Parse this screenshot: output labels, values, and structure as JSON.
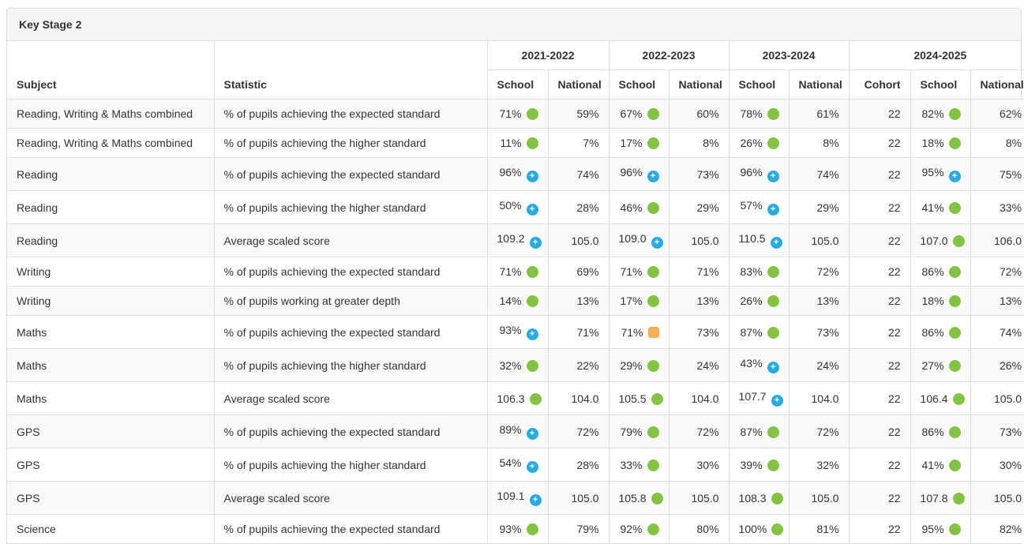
{
  "panel": {
    "title": "Key Stage 2"
  },
  "table": {
    "subject_header": "Subject",
    "statistic_header": "Statistic",
    "year_groups": [
      {
        "label": "2021-2022",
        "columns": [
          "School",
          "National"
        ]
      },
      {
        "label": "2022-2023",
        "columns": [
          "School",
          "National"
        ]
      },
      {
        "label": "2023-2024",
        "columns": [
          "School",
          "National"
        ]
      },
      {
        "label": "2024-2025",
        "columns": [
          "Cohort",
          "School",
          "National"
        ]
      }
    ],
    "icons": {
      "g": {
        "name": "green-circle-icon",
        "color": "#82c341",
        "shape": "circle",
        "glyph": ""
      },
      "b": {
        "name": "blue-plus-icon",
        "color": "#29abe2",
        "shape": "circle",
        "glyph": "+"
      },
      "o": {
        "name": "orange-square-icon",
        "color": "#f9ad5b",
        "shape": "square",
        "glyph": ""
      }
    },
    "rows": [
      {
        "subject": "Reading, Writing & Maths combined",
        "statistic": "% of pupils achieving the expected standard",
        "cells": [
          {
            "v": "71%",
            "i": "g"
          },
          {
            "v": "59%"
          },
          {
            "v": "67%",
            "i": "g"
          },
          {
            "v": "60%"
          },
          {
            "v": "78%",
            "i": "g"
          },
          {
            "v": "61%"
          },
          {
            "v": "22"
          },
          {
            "v": "82%",
            "i": "g"
          },
          {
            "v": "62%"
          }
        ]
      },
      {
        "subject": "Reading, Writing & Maths combined",
        "statistic": "% of pupils achieving the higher standard",
        "cells": [
          {
            "v": "11%",
            "i": "g"
          },
          {
            "v": "7%"
          },
          {
            "v": "17%",
            "i": "g"
          },
          {
            "v": "8%"
          },
          {
            "v": "26%",
            "i": "g"
          },
          {
            "v": "8%"
          },
          {
            "v": "22"
          },
          {
            "v": "18%",
            "i": "g"
          },
          {
            "v": "8%"
          }
        ]
      },
      {
        "subject": "Reading",
        "statistic": "% of pupils achieving the expected standard",
        "cells": [
          {
            "v": "96%",
            "i": "b"
          },
          {
            "v": "74%"
          },
          {
            "v": "96%",
            "i": "b"
          },
          {
            "v": "73%"
          },
          {
            "v": "96%",
            "i": "b"
          },
          {
            "v": "74%"
          },
          {
            "v": "22"
          },
          {
            "v": "95%",
            "i": "b"
          },
          {
            "v": "75%"
          }
        ]
      },
      {
        "subject": "Reading",
        "statistic": "% of pupils achieving the higher standard",
        "cells": [
          {
            "v": "50%",
            "i": "b"
          },
          {
            "v": "28%"
          },
          {
            "v": "46%",
            "i": "g"
          },
          {
            "v": "29%"
          },
          {
            "v": "57%",
            "i": "b"
          },
          {
            "v": "29%"
          },
          {
            "v": "22"
          },
          {
            "v": "41%",
            "i": "g"
          },
          {
            "v": "33%"
          }
        ]
      },
      {
        "subject": "Reading",
        "statistic": "Average scaled score",
        "cells": [
          {
            "v": "109.2",
            "i": "b"
          },
          {
            "v": "105.0"
          },
          {
            "v": "109.0",
            "i": "b"
          },
          {
            "v": "105.0"
          },
          {
            "v": "110.5",
            "i": "b"
          },
          {
            "v": "105.0"
          },
          {
            "v": "22"
          },
          {
            "v": "107.0",
            "i": "g"
          },
          {
            "v": "106.0"
          }
        ]
      },
      {
        "subject": "Writing",
        "statistic": "% of pupils achieving the expected standard",
        "cells": [
          {
            "v": "71%",
            "i": "g"
          },
          {
            "v": "69%"
          },
          {
            "v": "71%",
            "i": "g"
          },
          {
            "v": "71%"
          },
          {
            "v": "83%",
            "i": "g"
          },
          {
            "v": "72%"
          },
          {
            "v": "22"
          },
          {
            "v": "86%",
            "i": "g"
          },
          {
            "v": "72%"
          }
        ]
      },
      {
        "subject": "Writing",
        "statistic": "% of pupils working at greater depth",
        "cells": [
          {
            "v": "14%",
            "i": "g"
          },
          {
            "v": "13%"
          },
          {
            "v": "17%",
            "i": "g"
          },
          {
            "v": "13%"
          },
          {
            "v": "26%",
            "i": "g"
          },
          {
            "v": "13%"
          },
          {
            "v": "22"
          },
          {
            "v": "18%",
            "i": "g"
          },
          {
            "v": "13%"
          }
        ]
      },
      {
        "subject": "Maths",
        "statistic": "% of pupils achieving the expected standard",
        "cells": [
          {
            "v": "93%",
            "i": "b"
          },
          {
            "v": "71%"
          },
          {
            "v": "71%",
            "i": "o"
          },
          {
            "v": "73%"
          },
          {
            "v": "87%",
            "i": "g"
          },
          {
            "v": "73%"
          },
          {
            "v": "22"
          },
          {
            "v": "86%",
            "i": "g"
          },
          {
            "v": "74%"
          }
        ]
      },
      {
        "subject": "Maths",
        "statistic": "% of pupils achieving the higher standard",
        "cells": [
          {
            "v": "32%",
            "i": "g"
          },
          {
            "v": "22%"
          },
          {
            "v": "29%",
            "i": "g"
          },
          {
            "v": "24%"
          },
          {
            "v": "43%",
            "i": "b"
          },
          {
            "v": "24%"
          },
          {
            "v": "22"
          },
          {
            "v": "27%",
            "i": "g"
          },
          {
            "v": "26%"
          }
        ]
      },
      {
        "subject": "Maths",
        "statistic": "Average scaled score",
        "cells": [
          {
            "v": "106.3",
            "i": "g"
          },
          {
            "v": "104.0"
          },
          {
            "v": "105.5",
            "i": "g"
          },
          {
            "v": "104.0"
          },
          {
            "v": "107.7",
            "i": "b"
          },
          {
            "v": "104.0"
          },
          {
            "v": "22"
          },
          {
            "v": "106.4",
            "i": "g"
          },
          {
            "v": "105.0"
          }
        ]
      },
      {
        "subject": "GPS",
        "statistic": "% of pupils achieving the expected standard",
        "cells": [
          {
            "v": "89%",
            "i": "b"
          },
          {
            "v": "72%"
          },
          {
            "v": "79%",
            "i": "g"
          },
          {
            "v": "72%"
          },
          {
            "v": "87%",
            "i": "g"
          },
          {
            "v": "72%"
          },
          {
            "v": "22"
          },
          {
            "v": "86%",
            "i": "g"
          },
          {
            "v": "73%"
          }
        ]
      },
      {
        "subject": "GPS",
        "statistic": "% of pupils achieving the higher standard",
        "cells": [
          {
            "v": "54%",
            "i": "b"
          },
          {
            "v": "28%"
          },
          {
            "v": "33%",
            "i": "g"
          },
          {
            "v": "30%"
          },
          {
            "v": "39%",
            "i": "g"
          },
          {
            "v": "32%"
          },
          {
            "v": "22"
          },
          {
            "v": "41%",
            "i": "g"
          },
          {
            "v": "30%"
          }
        ]
      },
      {
        "subject": "GPS",
        "statistic": "Average scaled score",
        "cells": [
          {
            "v": "109.1",
            "i": "b"
          },
          {
            "v": "105.0"
          },
          {
            "v": "105.8",
            "i": "g"
          },
          {
            "v": "105.0"
          },
          {
            "v": "108.3",
            "i": "g"
          },
          {
            "v": "105.0"
          },
          {
            "v": "22"
          },
          {
            "v": "107.8",
            "i": "g"
          },
          {
            "v": "105.0"
          }
        ]
      },
      {
        "subject": "Science",
        "statistic": "% of pupils achieving the expected standard",
        "cells": [
          {
            "v": "93%",
            "i": "g"
          },
          {
            "v": "79%"
          },
          {
            "v": "92%",
            "i": "g"
          },
          {
            "v": "80%"
          },
          {
            "v": "100%",
            "i": "g"
          },
          {
            "v": "81%"
          },
          {
            "v": "22"
          },
          {
            "v": "95%",
            "i": "g"
          },
          {
            "v": "82%"
          }
        ]
      }
    ]
  }
}
